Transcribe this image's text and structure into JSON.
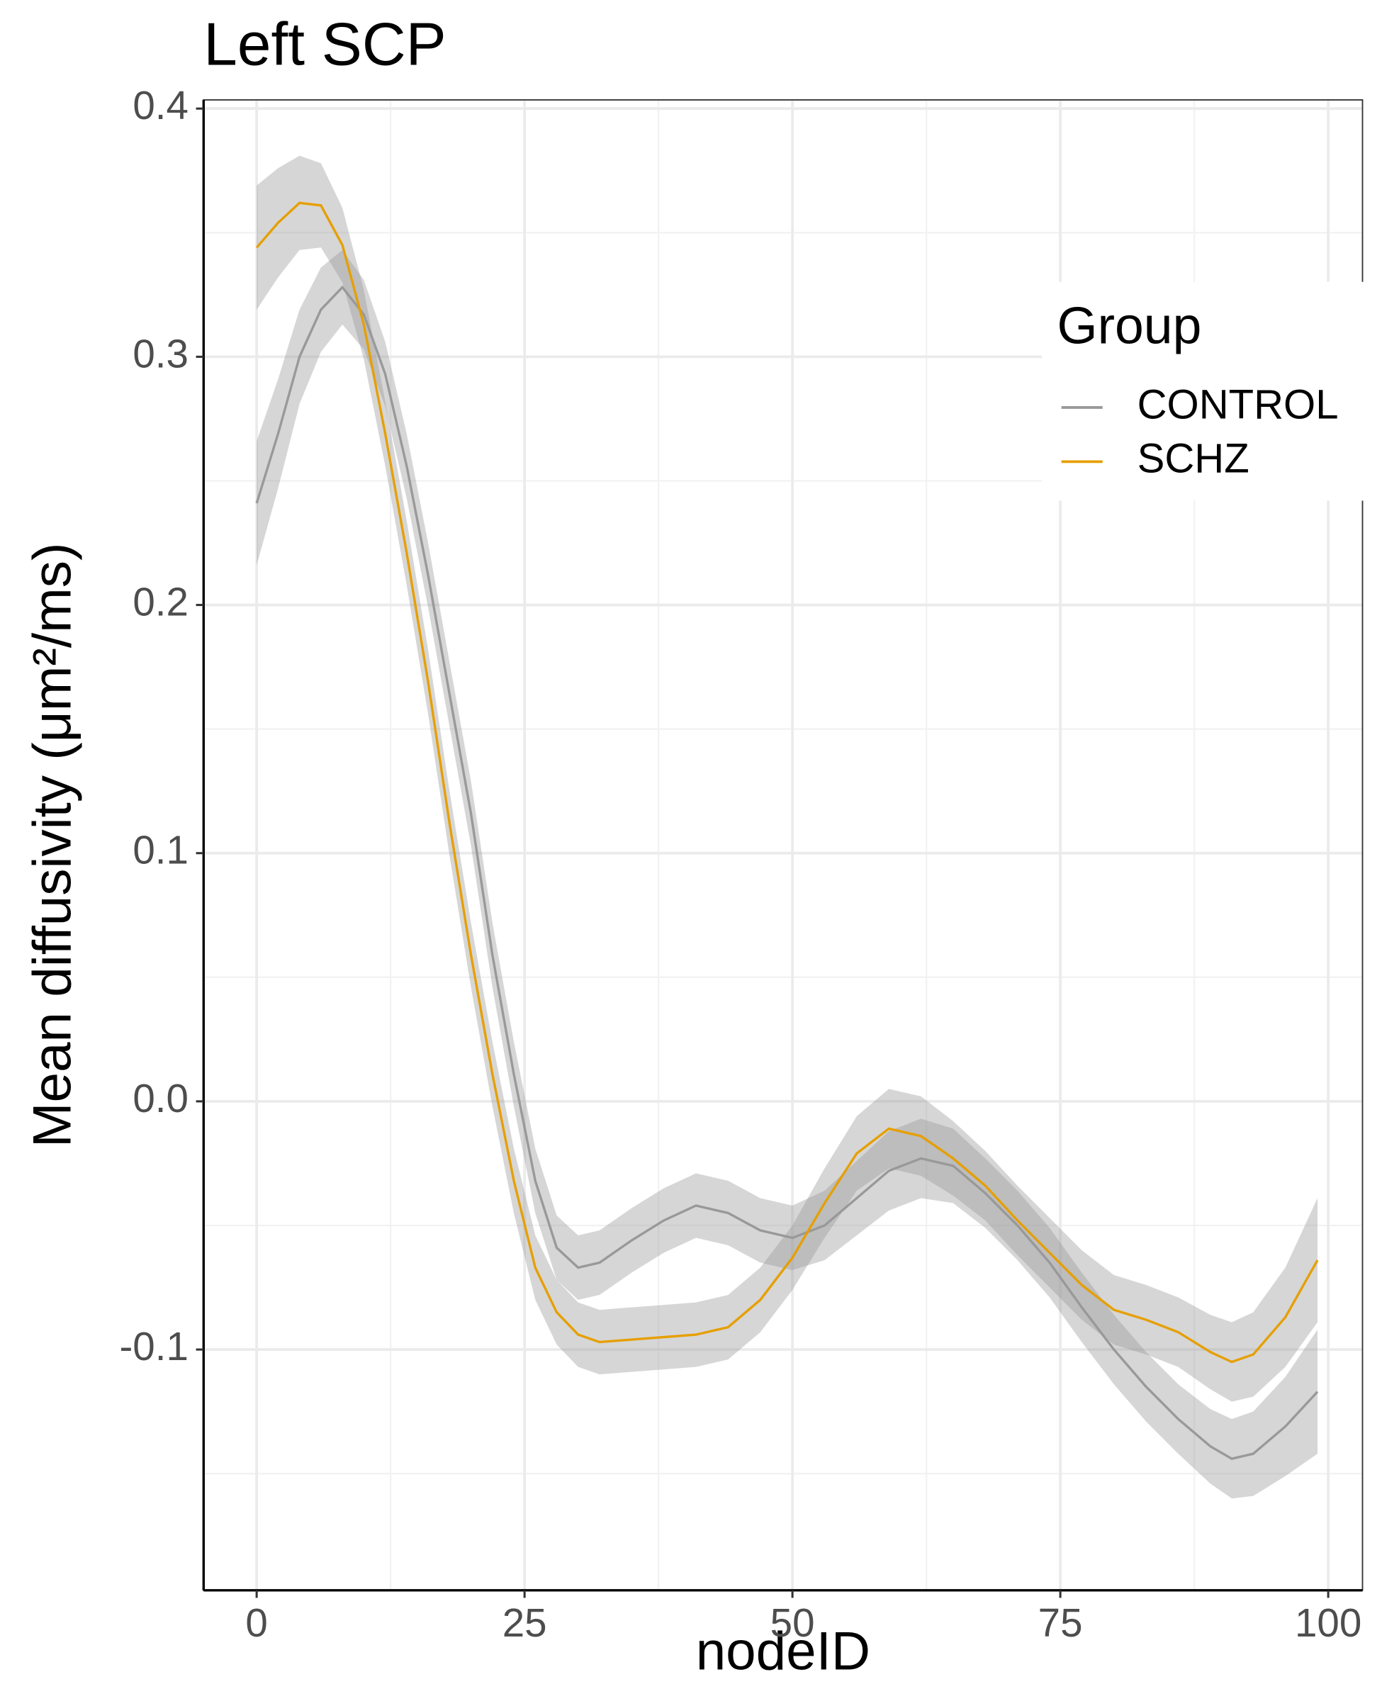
{
  "chart_data": {
    "type": "line",
    "title": "Left SCP",
    "x_label": "nodeID",
    "y_label": "Mean diffusivity (μm²/ms)",
    "legend_title": "Group",
    "legend_position": "right",
    "grid": true,
    "xlim": [
      -4.95,
      103.2
    ],
    "ylim": [
      -0.197,
      0.4035
    ],
    "xticks": [
      0,
      25,
      50,
      75,
      100
    ],
    "yticks": [
      -0.1,
      {
        "value": 0,
        "label": "0.0"
      },
      0.1,
      0.2,
      0.3,
      0.4
    ],
    "x": [
      0,
      2,
      4,
      6,
      8,
      10,
      12,
      14,
      16,
      18,
      20,
      22,
      24,
      26,
      28,
      30,
      32,
      35,
      38,
      41,
      44,
      47,
      50,
      53,
      56,
      59,
      62,
      65,
      68,
      71,
      74,
      77,
      80,
      83,
      86,
      89,
      91,
      93,
      96,
      99
    ],
    "band_color": "#999999",
    "series": [
      {
        "name": "CONTROL",
        "color": "#999999",
        "values": [
          0.241,
          0.269,
          0.3,
          0.319,
          0.328,
          0.317,
          0.293,
          0.256,
          0.212,
          0.164,
          0.116,
          0.059,
          0.011,
          -0.032,
          -0.059,
          -0.067,
          -0.065,
          -0.056,
          -0.048,
          -0.042,
          -0.045,
          -0.052,
          -0.055,
          -0.05,
          -0.039,
          -0.028,
          -0.023,
          -0.026,
          -0.037,
          -0.05,
          -0.065,
          -0.083,
          -0.1,
          -0.115,
          -0.128,
          -0.139,
          -0.144,
          -0.142,
          -0.131,
          -0.117
        ],
        "lower": [
          0.216,
          0.247,
          0.281,
          0.302,
          0.313,
          0.303,
          0.28,
          0.243,
          0.199,
          0.151,
          0.103,
          0.046,
          -0.002,
          -0.045,
          -0.072,
          -0.08,
          -0.078,
          -0.069,
          -0.061,
          -0.055,
          -0.058,
          -0.065,
          -0.068,
          -0.064,
          -0.054,
          -0.044,
          -0.039,
          -0.041,
          -0.051,
          -0.064,
          -0.079,
          -0.097,
          -0.114,
          -0.129,
          -0.142,
          -0.154,
          -0.16,
          -0.159,
          -0.151,
          -0.142
        ],
        "upper": [
          0.266,
          0.291,
          0.319,
          0.336,
          0.343,
          0.331,
          0.306,
          0.269,
          0.225,
          0.177,
          0.129,
          0.072,
          0.024,
          -0.019,
          -0.046,
          -0.054,
          -0.052,
          -0.043,
          -0.035,
          -0.029,
          -0.032,
          -0.039,
          -0.042,
          -0.036,
          -0.024,
          -0.012,
          -0.007,
          -0.011,
          -0.023,
          -0.036,
          -0.051,
          -0.069,
          -0.086,
          -0.101,
          -0.114,
          -0.124,
          -0.128,
          -0.125,
          -0.111,
          -0.092
        ]
      },
      {
        "name": "SCHZ",
        "color": "#E69F00",
        "values": [
          0.344,
          0.354,
          0.362,
          0.361,
          0.345,
          0.313,
          0.269,
          0.221,
          0.169,
          0.112,
          0.059,
          0.011,
          -0.032,
          -0.067,
          -0.085,
          -0.094,
          -0.097,
          -0.096,
          -0.095,
          -0.094,
          -0.091,
          -0.08,
          -0.063,
          -0.041,
          -0.021,
          -0.011,
          -0.014,
          -0.023,
          -0.034,
          -0.048,
          -0.061,
          -0.074,
          -0.084,
          -0.088,
          -0.093,
          -0.101,
          -0.105,
          -0.102,
          -0.087,
          -0.064
        ],
        "lower": [
          0.319,
          0.332,
          0.343,
          0.344,
          0.33,
          0.299,
          0.256,
          0.208,
          0.156,
          0.099,
          0.046,
          -0.002,
          -0.045,
          -0.08,
          -0.098,
          -0.107,
          -0.11,
          -0.109,
          -0.108,
          -0.107,
          -0.104,
          -0.093,
          -0.076,
          -0.055,
          -0.036,
          -0.027,
          -0.03,
          -0.038,
          -0.048,
          -0.062,
          -0.075,
          -0.088,
          -0.098,
          -0.102,
          -0.107,
          -0.116,
          -0.121,
          -0.119,
          -0.107,
          -0.089
        ],
        "upper": [
          0.369,
          0.376,
          0.381,
          0.378,
          0.36,
          0.327,
          0.282,
          0.234,
          0.182,
          0.125,
          0.072,
          0.024,
          -0.019,
          -0.054,
          -0.072,
          -0.081,
          -0.084,
          -0.083,
          -0.082,
          -0.081,
          -0.078,
          -0.067,
          -0.05,
          -0.027,
          -0.006,
          0.005,
          0.002,
          -0.008,
          -0.02,
          -0.034,
          -0.047,
          -0.06,
          -0.07,
          -0.074,
          -0.079,
          -0.086,
          -0.089,
          -0.085,
          -0.067,
          -0.039
        ]
      }
    ]
  }
}
